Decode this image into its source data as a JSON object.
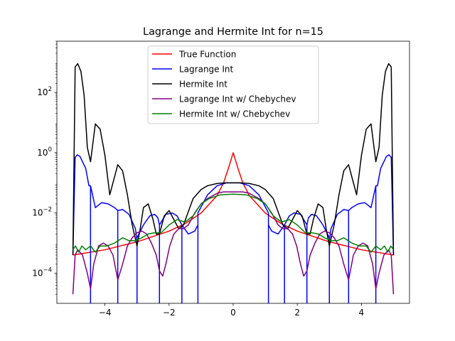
{
  "chart_data": {
    "type": "line",
    "title": "Lagrange and Hermite Int for n=15",
    "xlabel": "",
    "ylabel": "",
    "xlim": [
      -5.5,
      5.5
    ],
    "ylim": [
      1e-05,
      5000
    ],
    "yscale": "log",
    "grid": false,
    "legend_position": "top-center",
    "x_ticks": [
      {
        "value": -4,
        "label": "−4"
      },
      {
        "value": -2,
        "label": "−2"
      },
      {
        "value": 0,
        "label": "0"
      },
      {
        "value": 2,
        "label": "2"
      },
      {
        "value": 4,
        "label": "4"
      }
    ],
    "y_ticks": [
      {
        "exp": -4,
        "base": "10",
        "sup": "−4"
      },
      {
        "exp": -2,
        "base": "10",
        "sup": "−2"
      },
      {
        "exp": 0,
        "base": "10",
        "sup": "0"
      },
      {
        "exp": 2,
        "base": "10",
        "sup": "2"
      }
    ],
    "series": [
      {
        "name": "True Function",
        "color": "#ff0000",
        "x": [
          -5,
          -4,
          -3,
          -2,
          -1.5,
          -1,
          -0.5,
          -0.3,
          -0.15,
          0,
          0.15,
          0.3,
          0.5,
          1,
          1.5,
          2,
          3,
          4,
          5
        ],
        "y": [
          0.0004,
          0.0006,
          0.0011,
          0.0025,
          0.0044,
          0.0099,
          0.038,
          0.1,
          0.3,
          1.0,
          0.3,
          0.1,
          0.038,
          0.0099,
          0.0044,
          0.0025,
          0.0011,
          0.0006,
          0.0004
        ]
      },
      {
        "name": "Lagrange Int",
        "color": "#0000ff",
        "x": [
          -5,
          -4.93,
          -4.86,
          -4.78,
          -4.7,
          -4.6,
          -4.5,
          -4.45,
          -4.45,
          -4.45,
          -4.3,
          -4.1,
          -3.9,
          -3.7,
          -3.6,
          -3.6,
          -3.6,
          -3.45,
          -3.25,
          -3.05,
          -3.0,
          -3.0,
          -3.0,
          -2.8,
          -2.6,
          -2.45,
          -2.35,
          -2.3,
          -2.3,
          -2.3,
          -2.1,
          -1.9,
          -1.75,
          -1.65,
          -1.6,
          -1.6,
          -1.6,
          -1.4,
          -1.2,
          -1.1,
          -1.1,
          -1.1,
          -0.8,
          -0.5,
          -0.2,
          0,
          0.2,
          0.5,
          0.8,
          1.1,
          1.1,
          1.1,
          1.2,
          1.4,
          1.6,
          1.6,
          1.6,
          1.65,
          1.75,
          1.9,
          2.1,
          2.3,
          2.3,
          2.3,
          2.35,
          2.45,
          2.6,
          2.8,
          3.0,
          3.0,
          3.0,
          3.05,
          3.25,
          3.45,
          3.6,
          3.6,
          3.6,
          3.7,
          3.9,
          4.1,
          4.3,
          4.45,
          4.45,
          4.45,
          4.5,
          4.6,
          4.7,
          4.78,
          4.86,
          4.93,
          5
        ],
        "y": [
          0.0004,
          0.7,
          0.85,
          0.75,
          0.5,
          0.3,
          0.08,
          0.08,
          1e-05,
          0.08,
          0.015,
          0.022,
          0.02,
          0.015,
          0.012,
          1e-05,
          0.012,
          0.013,
          0.009,
          0.003,
          0.0012,
          1e-05,
          0.0015,
          0.004,
          0.008,
          0.009,
          0.007,
          0.004,
          1e-05,
          0.004,
          0.009,
          0.01,
          0.008,
          0.005,
          0.004,
          1e-05,
          0.004,
          0.002,
          0.0025,
          0.004,
          1e-05,
          0.01,
          0.04,
          0.08,
          0.1,
          0.1,
          0.1,
          0.08,
          0.04,
          0.01,
          1e-05,
          0.004,
          0.0025,
          0.002,
          0.004,
          1e-05,
          0.004,
          0.005,
          0.008,
          0.01,
          0.009,
          0.004,
          1e-05,
          0.004,
          0.007,
          0.009,
          0.008,
          0.004,
          0.0015,
          1e-05,
          0.0012,
          0.003,
          0.009,
          0.013,
          0.012,
          1e-05,
          0.012,
          0.015,
          0.02,
          0.022,
          0.015,
          0.08,
          1e-05,
          0.08,
          0.08,
          0.3,
          0.5,
          0.75,
          0.85,
          0.7,
          0.0004
        ]
      },
      {
        "name": "Hermite Int",
        "color": "#000000",
        "x": [
          -5,
          -4.93,
          -4.85,
          -4.75,
          -4.65,
          -4.55,
          -4.45,
          -4.3,
          -4.15,
          -4.0,
          -3.85,
          -3.75,
          -3.6,
          -3.45,
          -3.3,
          -3.15,
          -3.0,
          -2.9,
          -2.8,
          -2.65,
          -2.5,
          -2.4,
          -2.3,
          -2.15,
          -2.0,
          -1.85,
          -1.7,
          -1.55,
          -1.4,
          -1.25,
          -1.0,
          -0.8,
          -0.5,
          -0.25,
          0,
          0.25,
          0.5,
          0.8,
          1.0,
          1.25,
          1.4,
          1.55,
          1.7,
          1.85,
          2.0,
          2.15,
          2.3,
          2.4,
          2.5,
          2.65,
          2.8,
          2.9,
          3.0,
          3.15,
          3.3,
          3.45,
          3.6,
          3.75,
          3.85,
          4.0,
          4.15,
          4.3,
          4.45,
          4.55,
          4.65,
          4.75,
          4.85,
          4.93,
          5
        ],
        "y": [
          0.0004,
          700,
          900,
          500,
          80,
          1.5,
          0.5,
          9,
          6,
          0.8,
          0.04,
          0.1,
          0.4,
          0.25,
          0.04,
          0.004,
          0.0008,
          0.003,
          0.015,
          0.02,
          0.006,
          0.002,
          0.002,
          0.008,
          0.012,
          0.006,
          0.003,
          0.004,
          0.011,
          0.03,
          0.06,
          0.08,
          0.095,
          0.1,
          0.1,
          0.1,
          0.095,
          0.08,
          0.06,
          0.03,
          0.011,
          0.004,
          0.003,
          0.006,
          0.012,
          0.008,
          0.002,
          0.002,
          0.006,
          0.02,
          0.015,
          0.003,
          0.0008,
          0.004,
          0.04,
          0.25,
          0.4,
          0.1,
          0.04,
          0.8,
          6,
          9,
          0.5,
          1.5,
          80,
          500,
          900,
          700,
          0.0004
        ]
      },
      {
        "name": "Lagrange Int w/ Chebychev",
        "color": "#800080",
        "x": [
          -5,
          -4.93,
          -4.85,
          -4.7,
          -4.55,
          -4.45,
          -4.35,
          -4.2,
          -4.05,
          -3.9,
          -3.75,
          -3.6,
          -3.45,
          -3.3,
          -3.15,
          -3.0,
          -2.85,
          -2.7,
          -2.55,
          -2.4,
          -2.3,
          -2.2,
          -2.1,
          -1.98,
          -1.85,
          -1.7,
          -1.55,
          -1.4,
          -1.2,
          -1.0,
          -0.8,
          -0.5,
          -0.3,
          0,
          0.3,
          0.5,
          0.8,
          1.0,
          1.2,
          1.4,
          1.55,
          1.7,
          1.85,
          1.98,
          2.1,
          2.2,
          2.3,
          2.4,
          2.55,
          2.7,
          2.85,
          3.0,
          3.15,
          3.3,
          3.45,
          3.6,
          3.75,
          3.9,
          4.05,
          4.2,
          4.35,
          4.45,
          4.55,
          4.7,
          4.85,
          4.93,
          5
        ],
        "y": [
          2e-05,
          0.0004,
          0.0006,
          0.0004,
          0.0001,
          3e-05,
          0.0002,
          0.0008,
          0.001,
          0.0008,
          0.0004,
          6e-05,
          0.0002,
          0.0008,
          0.0015,
          0.0022,
          0.0025,
          0.002,
          0.001,
          0.0004,
          0.00012,
          8e-05,
          0.0002,
          0.0008,
          0.002,
          0.003,
          0.003,
          0.004,
          0.01,
          0.02,
          0.03,
          0.045,
          0.05,
          0.05,
          0.05,
          0.045,
          0.03,
          0.02,
          0.01,
          0.004,
          0.003,
          0.003,
          0.002,
          0.0008,
          0.0002,
          8e-05,
          0.00012,
          0.0004,
          0.001,
          0.002,
          0.0025,
          0.0022,
          0.0015,
          0.0008,
          0.0002,
          6e-05,
          0.0004,
          0.0008,
          0.001,
          0.0008,
          0.0002,
          3e-05,
          0.0001,
          0.0004,
          0.0006,
          0.0004,
          2e-05
        ]
      },
      {
        "name": "Hermite Int w/ Chebychev",
        "color": "#008000",
        "x": [
          -5,
          -4.92,
          -4.82,
          -4.72,
          -4.6,
          -4.45,
          -4.3,
          -4.15,
          -3.95,
          -3.7,
          -3.45,
          -3.25,
          -3.05,
          -2.85,
          -2.65,
          -2.45,
          -2.25,
          -2.0,
          -1.75,
          -1.5,
          -1.25,
          -1.0,
          -0.75,
          -0.4,
          0,
          0.4,
          0.75,
          1.0,
          1.25,
          1.5,
          1.75,
          2.0,
          2.25,
          2.45,
          2.65,
          2.85,
          3.05,
          3.25,
          3.45,
          3.7,
          3.95,
          4.15,
          4.3,
          4.45,
          4.6,
          4.72,
          4.82,
          4.92,
          5
        ],
        "y": [
          0.0006,
          0.0008,
          0.0005,
          0.0008,
          0.0006,
          0.0008,
          0.0005,
          0.0008,
          0.0008,
          0.001,
          0.0015,
          0.0012,
          0.0012,
          0.0015,
          0.002,
          0.0022,
          0.0022,
          0.004,
          0.006,
          0.005,
          0.008,
          0.02,
          0.03,
          0.04,
          0.042,
          0.04,
          0.03,
          0.02,
          0.008,
          0.005,
          0.006,
          0.004,
          0.0022,
          0.0022,
          0.002,
          0.0015,
          0.0012,
          0.0012,
          0.0015,
          0.001,
          0.0008,
          0.0008,
          0.0005,
          0.0008,
          0.0006,
          0.0008,
          0.0005,
          0.0008,
          0.0006
        ]
      }
    ]
  }
}
